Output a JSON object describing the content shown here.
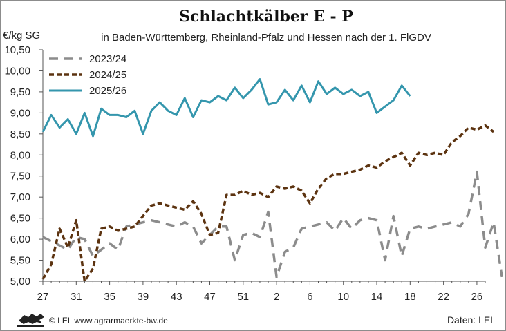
{
  "colors": {
    "s2023": "#8c8c8c",
    "s2024": "#5c3310",
    "s2025": "#3496ad",
    "axis": "#555555"
  },
  "icons": {
    "logo": "baden-wuerttemberg-lions-logo"
  },
  "footer": {
    "copyright": "© LEL www.agrarmaerkte-bw.de",
    "source": "Daten:  LEL"
  },
  "chart_data": {
    "type": "line",
    "title": "Schlachtkälber E - P",
    "subtitle": "in Baden-Württemberg, Rheinland-Pfalz und Hessen nach der 1. FlGDV",
    "ylabel": "€/kg SG",
    "xlabel": "",
    "ylim": [
      5.0,
      10.5
    ],
    "yticks": [
      "5,00",
      "5,50",
      "6,00",
      "6,50",
      "7,00",
      "7,50",
      "8,00",
      "8,50",
      "9,00",
      "9,50",
      "10,00",
      "10,50"
    ],
    "xticks": [
      "27",
      "31",
      "35",
      "39",
      "43",
      "47",
      "51",
      "2",
      "6",
      "10",
      "14",
      "18",
      "22",
      "26"
    ],
    "legend_position": "top-left",
    "grid": false,
    "series": [
      {
        "name": "2023/24",
        "style": "dashed-grey",
        "values": [
          6.05,
          5.95,
          5.85,
          5.75,
          6.05,
          6.0,
          5.6,
          5.75,
          5.9,
          5.75,
          6.3,
          6.35,
          6.4,
          6.45,
          6.4,
          6.35,
          6.3,
          6.4,
          6.3,
          5.9,
          6.1,
          6.3,
          6.3,
          5.5,
          6.1,
          6.15,
          6.05,
          6.65,
          5.1,
          5.7,
          5.8,
          6.25,
          6.3,
          6.35,
          6.4,
          6.2,
          6.5,
          6.25,
          6.45,
          6.5,
          6.45,
          5.5,
          6.55,
          5.6,
          6.25,
          6.3,
          6.25,
          6.3,
          6.35,
          6.4,
          6.3,
          6.6,
          7.6,
          5.8,
          6.4,
          5.1
        ]
      },
      {
        "name": "2024/25",
        "style": "dashed-brown",
        "values": [
          5.05,
          5.4,
          6.25,
          5.8,
          6.45,
          5.0,
          5.3,
          6.25,
          6.3,
          6.2,
          6.25,
          6.3,
          6.55,
          6.8,
          6.85,
          6.8,
          6.75,
          6.7,
          6.9,
          6.6,
          6.1,
          6.15,
          7.05,
          7.05,
          7.15,
          7.05,
          7.1,
          7.0,
          7.25,
          7.2,
          7.25,
          7.15,
          6.85,
          7.2,
          7.45,
          7.55,
          7.55,
          7.6,
          7.65,
          7.75,
          7.7,
          7.85,
          7.95,
          8.05,
          7.75,
          8.05,
          8.0,
          8.05,
          8.0,
          8.3,
          8.45,
          8.65,
          8.6,
          8.7,
          8.55
        ]
      },
      {
        "name": "2025/26",
        "style": "solid-teal",
        "values": [
          8.55,
          8.95,
          8.65,
          8.85,
          8.5,
          9.0,
          8.45,
          9.1,
          8.95,
          8.95,
          8.9,
          9.05,
          8.5,
          9.05,
          9.25,
          9.05,
          8.95,
          9.35,
          8.9,
          9.3,
          9.25,
          9.4,
          9.3,
          9.6,
          9.35,
          9.55,
          9.8,
          9.2,
          9.25,
          9.55,
          9.3,
          9.65,
          9.25,
          9.75,
          9.45,
          9.6,
          9.45,
          9.55,
          9.4,
          9.5,
          9.0,
          9.15,
          9.3,
          9.65,
          9.4
        ]
      }
    ]
  }
}
